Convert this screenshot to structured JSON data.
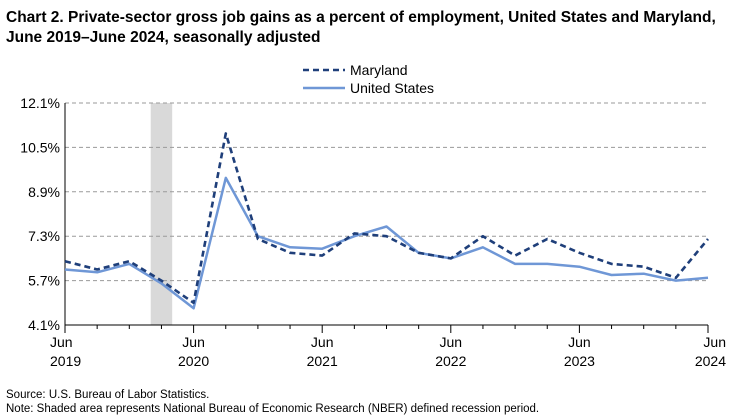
{
  "chart_data": {
    "type": "line",
    "title": "Chart 2. Private-sector gross job gains as a percent of employment, United States and Maryland, June 2019–June 2024, seasonally adjusted",
    "xlabel": "",
    "ylabel": "",
    "ylim": [
      4.1,
      12.1
    ],
    "y_ticks": [
      "12.1%",
      "10.5%",
      "8.9%",
      "7.3%",
      "5.7%",
      "4.1%"
    ],
    "y_tick_values": [
      12.1,
      10.5,
      8.9,
      7.3,
      5.7,
      4.1
    ],
    "x_ticks": [
      {
        "month": "Jun",
        "year": "2019"
      },
      {
        "month": "Jun",
        "year": "2020"
      },
      {
        "month": "Jun",
        "year": "2021"
      },
      {
        "month": "Jun",
        "year": "2022"
      },
      {
        "month": "Jun",
        "year": "2023"
      },
      {
        "month": "Jun",
        "year": "2024"
      }
    ],
    "x": [
      "Jun 2019",
      "Sep 2019",
      "Dec 2019",
      "Mar 2020",
      "Jun 2020",
      "Sep 2020",
      "Dec 2020",
      "Mar 2021",
      "Jun 2021",
      "Sep 2021",
      "Dec 2021",
      "Mar 2022",
      "Jun 2022",
      "Sep 2022",
      "Dec 2022",
      "Mar 2023",
      "Jun 2023",
      "Sep 2023",
      "Dec 2023",
      "Mar 2024",
      "Jun 2024"
    ],
    "series": [
      {
        "name": "Maryland",
        "color": "#1f3f7a",
        "dash": "dashed",
        "values": [
          6.4,
          6.1,
          6.4,
          5.7,
          4.9,
          11.0,
          7.2,
          6.7,
          6.6,
          7.4,
          7.3,
          6.7,
          6.5,
          7.3,
          6.6,
          7.2,
          6.7,
          6.3,
          6.2,
          5.8,
          7.2
        ]
      },
      {
        "name": "United States",
        "color": "#6f97d6",
        "dash": "solid",
        "values": [
          6.1,
          6.0,
          6.3,
          5.6,
          4.7,
          9.4,
          7.3,
          6.9,
          6.85,
          7.3,
          7.65,
          6.7,
          6.5,
          6.9,
          6.3,
          6.3,
          6.2,
          5.9,
          5.95,
          5.7,
          5.8
        ]
      }
    ],
    "recession_band": {
      "start": "Feb 2020",
      "end": "Apr 2020",
      "color": "#d9d9d9"
    },
    "grid": true,
    "legend_position": "top-center"
  },
  "footnotes": {
    "source": "Source: U.S. Bureau of Labor Statistics.",
    "note": "Note: Shaded area represents National Bureau of Economic Research (NBER) defined recession period."
  }
}
